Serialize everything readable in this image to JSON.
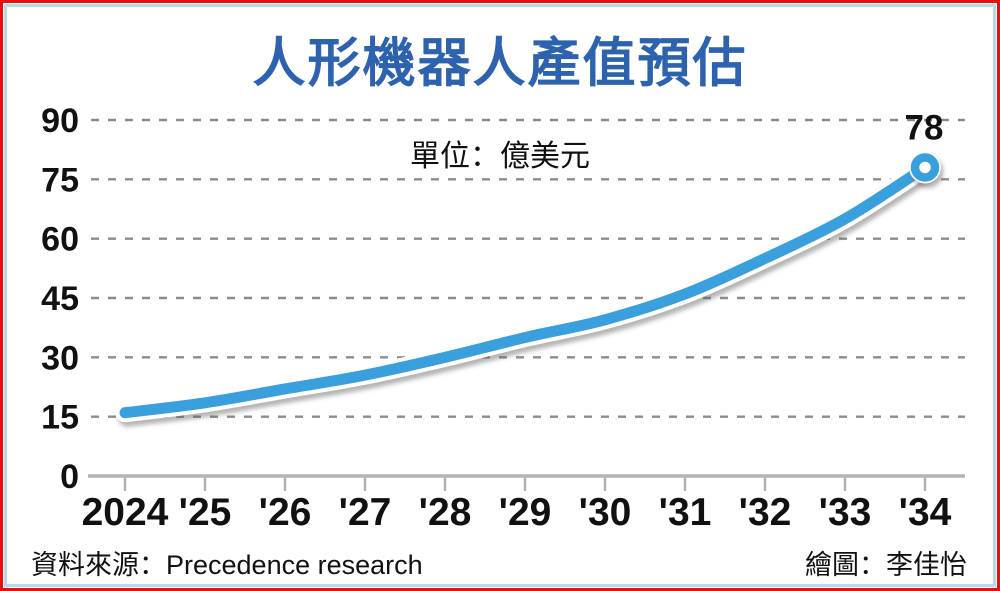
{
  "frame": {
    "outer_border_color": "#e8100e",
    "inner_border_color": "#bdd7ea"
  },
  "title": "人形機器人產值預估",
  "title_color": "#2d62ae",
  "unit_label": "單位：億美元",
  "footer": {
    "source": "資料來源：Precedence research",
    "credit": "繪圖：李佳怡"
  },
  "chart_data": {
    "type": "line",
    "title": "人形機器人產值預估",
    "unit": "億美元",
    "x_labels": [
      "2024",
      "'25",
      "'26",
      "'27",
      "'28",
      "'29",
      "'30",
      "'31",
      "'32",
      "'33",
      "'34"
    ],
    "values": [
      16,
      18.5,
      22,
      25.5,
      30,
      35,
      39.5,
      46,
      55,
      65,
      78
    ],
    "ylim": [
      0,
      90
    ],
    "yticks": [
      0,
      15,
      30,
      45,
      60,
      75,
      90
    ],
    "grid": "horizontal-dashed",
    "gridline_color": "#8c8c8c",
    "axis_color": "#b2b2b2",
    "text_color": "#111111",
    "line_color": "#3a9fdd",
    "last_point_label": "78",
    "marker": "ring-on-last-point",
    "legend": "none"
  }
}
